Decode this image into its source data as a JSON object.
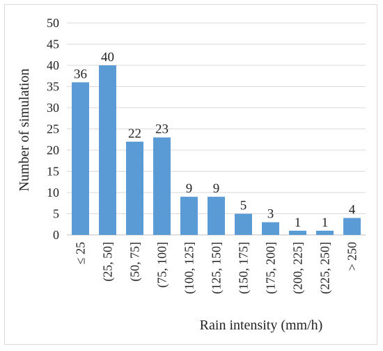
{
  "chart_data": {
    "type": "bar",
    "categories": [
      "≤ 25",
      "(25, 50]",
      "(50, 75]",
      "(75, 100]",
      "(100, 125]",
      "(125, 150]",
      "(150, 175]",
      "(175, 200]",
      "(200, 225]",
      "(225, 250]",
      "> 250"
    ],
    "values": [
      36,
      40,
      22,
      23,
      9,
      9,
      5,
      3,
      1,
      1,
      4
    ],
    "xlabel": "Rain intensity (mm/h)",
    "ylabel": "Number of simulation",
    "ylim": [
      0,
      50
    ],
    "yticks": [
      0,
      5,
      10,
      15,
      20,
      25,
      30,
      35,
      40,
      45,
      50
    ],
    "bar_color": "#5b9bd5",
    "grid": true,
    "data_labels": true
  }
}
